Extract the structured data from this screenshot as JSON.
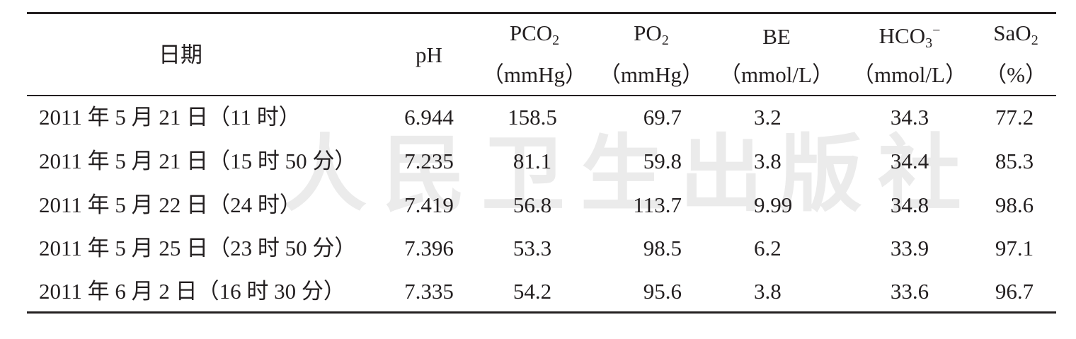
{
  "watermark": "人民卫生出版社",
  "table": {
    "header": [
      {
        "text": "日期"
      },
      {
        "text": "pH"
      },
      {
        "text": "PCO",
        "sub": "2",
        "unit": "（mmHg）"
      },
      {
        "text": "PO",
        "sub": "2",
        "unit": "（mmHg）"
      },
      {
        "text": "BE",
        "unit": "（mmol/L）"
      },
      {
        "text": "HCO",
        "sub": "3",
        "sup": "−",
        "unit": "（mmol/L）"
      },
      {
        "text": "SaO",
        "sub": "2",
        "unit": "（%）"
      }
    ],
    "rows": [
      [
        "2011 年 5 月 21 日（11 时）",
        "6.944",
        "158.5",
        "69.7",
        "3.2",
        "34.3",
        "77.2"
      ],
      [
        "2011 年 5 月 21 日（15 时 50 分）",
        "7.235",
        "81.1",
        "59.8",
        "3.8",
        "34.4",
        "85.3"
      ],
      [
        "2011 年 5 月 22 日（24 时）",
        "7.419",
        "56.8",
        "113.7",
        "9.99",
        "34.8",
        "98.6"
      ],
      [
        "2011 年 5 月 25 日（23 时 50 分）",
        "7.396",
        "53.3",
        "98.5",
        "6.2",
        "33.9",
        "97.1"
      ],
      [
        "2011 年 6 月 2 日（16 时 30 分）",
        "7.335",
        "54.2",
        "95.6",
        "3.8",
        "33.6",
        "96.7"
      ]
    ]
  }
}
